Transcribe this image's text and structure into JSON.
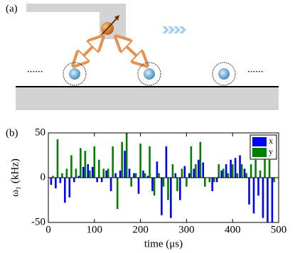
{
  "panel_a": {
    "label": "(a)",
    "ellipses": [
      "......",
      "......"
    ]
  },
  "chart_data": {
    "type": "bar",
    "panel_label": "(b)",
    "xlabel": "time (μs)",
    "ylabel": "ω₁ (kHz)",
    "x": [
      8,
      18,
      28,
      38,
      48,
      58,
      68,
      78,
      88,
      98,
      108,
      118,
      128,
      138,
      148,
      158,
      168,
      178,
      188,
      198,
      208,
      218,
      228,
      238,
      248,
      258,
      268,
      278,
      288,
      298,
      308,
      318,
      328,
      338,
      348,
      358,
      368,
      378,
      388,
      398,
      408,
      418,
      428,
      438,
      448,
      458,
      468,
      478,
      488
    ],
    "series": [
      {
        "name": "x",
        "color": "#0000ff",
        "values": [
          -8,
          -12,
          -6,
          -28,
          -22,
          -5,
          2,
          12,
          15,
          12,
          -5,
          -5,
          8,
          -15,
          5,
          8,
          30,
          10,
          5,
          -18,
          8,
          2,
          -15,
          18,
          -42,
          35,
          -45,
          5,
          -25,
          13,
          5,
          10,
          20,
          17,
          0,
          -15,
          -5,
          8,
          15,
          20,
          22,
          25,
          10,
          -30,
          -40,
          -20,
          -45,
          -50,
          -50
        ]
      },
      {
        "name": "y",
        "color": "#007f00",
        "values": [
          2,
          43,
          5,
          10,
          25,
          10,
          33,
          30,
          8,
          35,
          20,
          10,
          10,
          35,
          -35,
          40,
          50,
          -10,
          5,
          38,
          5,
          35,
          -20,
          5,
          -10,
          -25,
          15,
          -15,
          10,
          -10,
          35,
          15,
          40,
          -10,
          -5,
          -5,
          15,
          10,
          5,
          15,
          5,
          15,
          5,
          15,
          20,
          8,
          35,
          20,
          -5
        ]
      }
    ],
    "xlim": [
      0,
      500
    ],
    "xticks": [
      0,
      100,
      200,
      300,
      400,
      500
    ],
    "ylim": [
      -50,
      50
    ],
    "yticks": [
      -50,
      0,
      50
    ],
    "legend": "upper right"
  }
}
